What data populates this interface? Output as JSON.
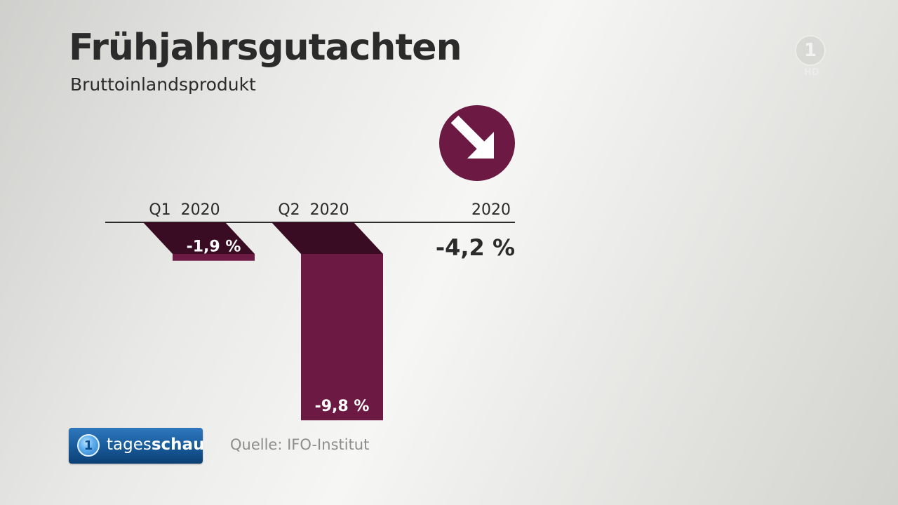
{
  "title": "Frühjahrsgutachten",
  "subtitle": "Bruttoinlandsprodukt",
  "logo": {
    "mark": "1",
    "hd": "HD"
  },
  "trend_icon": "arrow-down-right-icon",
  "source": "Quelle: IFO-Institut",
  "brand": {
    "name_light": "tages",
    "name_bold": "schau"
  },
  "colors": {
    "bar": "#6c1a44",
    "bar_top": "#3a0c24",
    "text": "#2b2b2b"
  },
  "chart_data": {
    "type": "bar",
    "categories": [
      "Q1  2020",
      "Q2  2020"
    ],
    "values": [
      -1.9,
      -9.8
    ],
    "value_labels": [
      "-1,9 %",
      "-9,8 %"
    ],
    "summary": {
      "label": "2020",
      "value": -4.2,
      "value_label": "-4,2 %"
    },
    "title": "Frühjahrsgutachten",
    "subtitle": "Bruttoinlandsprodukt",
    "xlabel": "",
    "ylabel": ""
  }
}
